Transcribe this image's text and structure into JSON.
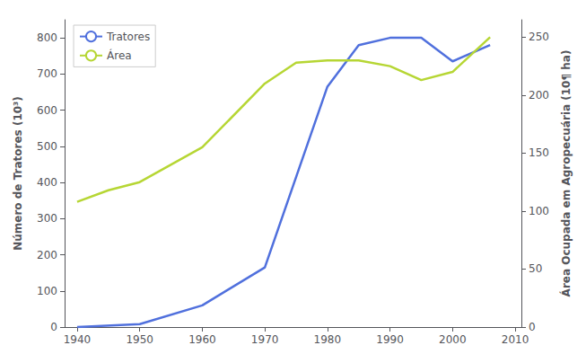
{
  "chart_data": {
    "type": "line",
    "ylabel": "Número de Tratores (10³)",
    "y2label": "Área Ocupada em Agropecuária (10¶ ha)",
    "series": [
      {
        "name": "Tratores",
        "axis": "y",
        "x": [
          1940,
          1950,
          1960,
          1970,
          1980,
          1985,
          1990,
          1995,
          2000,
          2006
        ],
        "values": [
          0,
          8,
          60,
          165,
          665,
          780,
          800,
          800,
          735,
          780
        ]
      },
      {
        "name": "Área",
        "axis": "y2",
        "x": [
          1940,
          1945,
          1950,
          1960,
          1970,
          1975,
          1980,
          1985,
          1990,
          1995,
          2000,
          2006
        ],
        "values": [
          108,
          118,
          125,
          155,
          210,
          228,
          230,
          230,
          225,
          213,
          220,
          250
        ]
      }
    ],
    "xlim": [
      1938,
      2011
    ],
    "xticks": [
      1940,
      1950,
      1960,
      1970,
      1980,
      1990,
      2000,
      2010
    ],
    "ylim": [
      0,
      850
    ],
    "yticks": [
      0,
      100,
      200,
      300,
      400,
      500,
      600,
      700,
      800
    ],
    "y2lim": [
      0,
      265
    ],
    "y2ticks": [
      0,
      50,
      100,
      150,
      200,
      250
    ],
    "grid": false,
    "legend": "upper left"
  }
}
